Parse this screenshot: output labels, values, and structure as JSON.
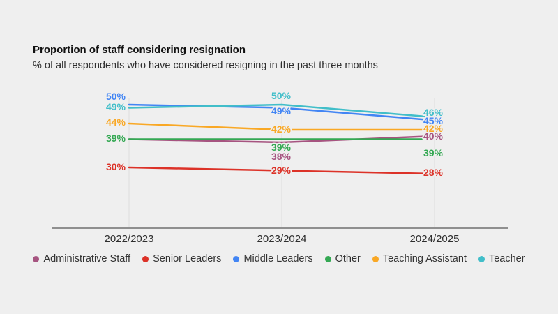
{
  "page": {
    "background": "#efefef"
  },
  "header": {
    "title": "Proportion of staff considering resignation",
    "subtitle": "% of all respondents who have considered resigning in the past three months"
  },
  "chart_data": {
    "type": "line",
    "title": "Proportion of staff considering resignation",
    "subtitle": "% of all respondents who have considered resigning in the past three months",
    "categories": [
      "2022/2023",
      "2023/2024",
      "2024/2025"
    ],
    "series": [
      {
        "name": "Administrative Staff",
        "color": "#a65480",
        "values": [
          39,
          38,
          40
        ],
        "labels_shown": [
          false,
          true,
          true
        ]
      },
      {
        "name": "Senior Leaders",
        "color": "#dc3228",
        "values": [
          30,
          29,
          28
        ],
        "labels_shown": [
          true,
          true,
          true
        ]
      },
      {
        "name": "Middle Leaders",
        "color": "#4285f4",
        "values": [
          50,
          49,
          45
        ],
        "labels_shown": [
          true,
          true,
          true
        ]
      },
      {
        "name": "Other",
        "color": "#34a853",
        "values": [
          39,
          39,
          39
        ],
        "labels_shown": [
          true,
          true,
          true
        ]
      },
      {
        "name": "Teaching Assistant",
        "color": "#f9a825",
        "values": [
          44,
          42,
          42
        ],
        "labels_shown": [
          true,
          true,
          true
        ]
      },
      {
        "name": "Teacher",
        "color": "#41bec9",
        "values": [
          49,
          50,
          46
        ],
        "labels_shown": [
          true,
          true,
          true
        ]
      }
    ],
    "value_suffix": "%",
    "ylim": [
      11,
      55
    ],
    "grid": "vertical category gridlines",
    "legend_position": "bottom",
    "xlabel": "",
    "ylabel": ""
  }
}
